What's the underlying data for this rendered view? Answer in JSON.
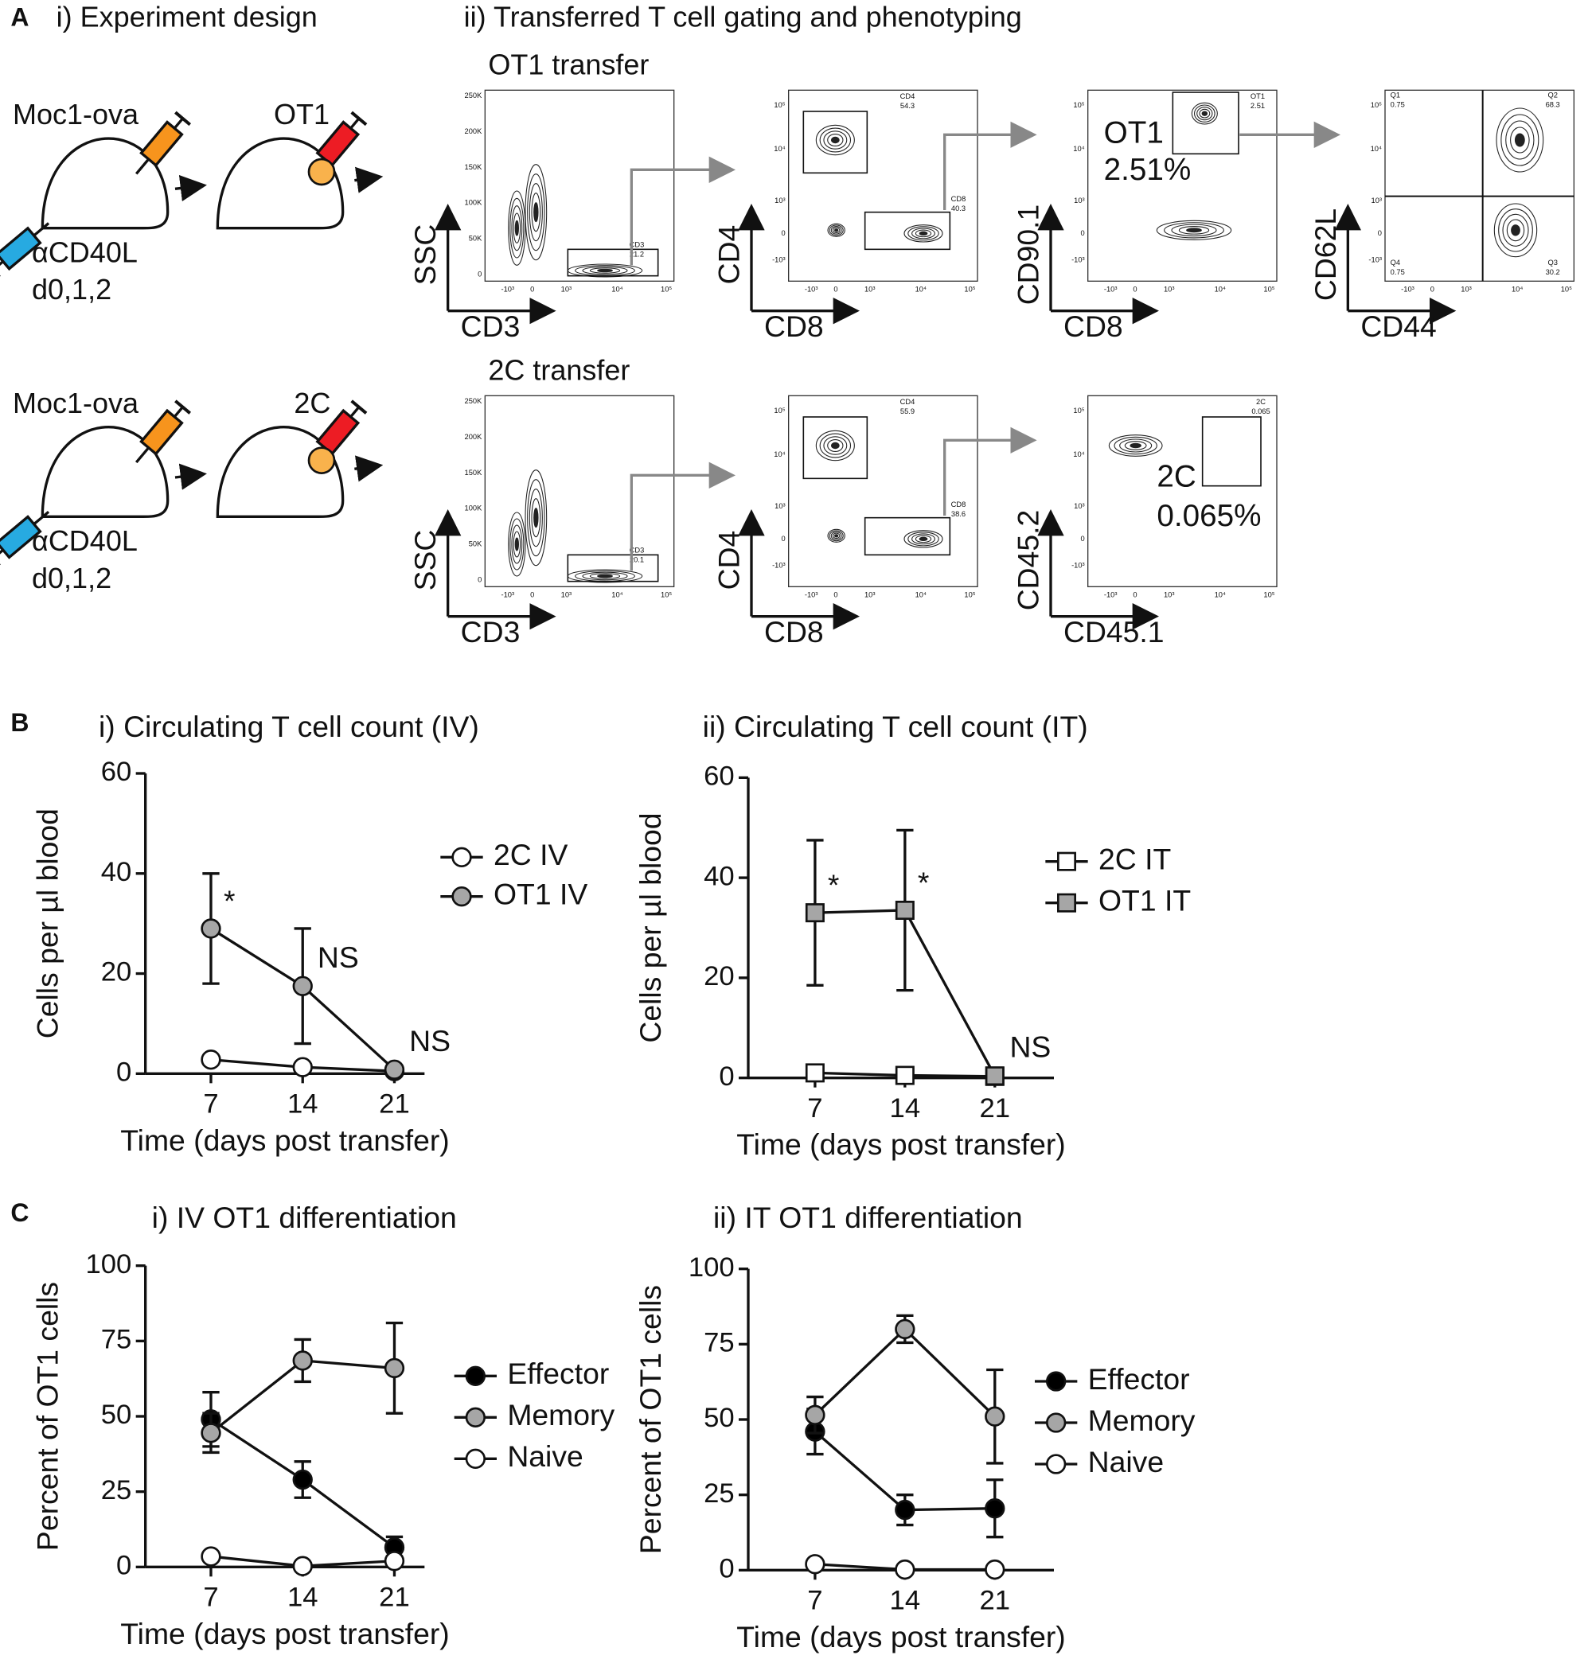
{
  "panel_labels": [
    "A",
    "B",
    "C"
  ],
  "panel_A": {
    "design_title": "i) Experiment design",
    "gating_title": "ii) Transferred T cell gating and phenotyping",
    "flow_ticks": {
      "linear": [
        "250K",
        "200K",
        "150K",
        "100K",
        "50K",
        "0"
      ],
      "log": [
        "10⁵",
        "10⁴",
        "10³",
        "0",
        "-10³"
      ],
      "x": [
        "-10³",
        "0",
        "10³",
        "10⁴",
        "10⁵"
      ]
    },
    "rows": [
      {
        "tumor": "Moc1-ova",
        "cells": "OT1",
        "treatment": "αCD40L",
        "days": "d0,1,2",
        "transfer_title": "OT1 transfer",
        "plots": [
          {
            "x_label": "CD3",
            "y_label": "SSC",
            "gates": [
              {
                "name": "CD3",
                "value": 21.2
              }
            ]
          },
          {
            "x_label": "CD8",
            "y_label": "CD4",
            "gates": [
              {
                "name": "CD4",
                "value": 54.3
              },
              {
                "name": "CD8",
                "value": 40.3
              }
            ]
          },
          {
            "x_label": "CD8",
            "y_label": "CD90.1",
            "gates": [
              {
                "name": "OT1",
                "value": 2.51
              }
            ],
            "callout": [
              "OT1",
              "2.51%"
            ]
          },
          {
            "x_label": "CD44",
            "y_label": "CD62L",
            "gates": [
              {
                "name": "Q1",
                "value": 0.75
              },
              {
                "name": "Q2",
                "value": 68.3
              },
              {
                "name": "Q3",
                "value": 30.2
              },
              {
                "name": "Q4",
                "value": 0.75
              }
            ]
          }
        ]
      },
      {
        "tumor": "Moc1-ova",
        "cells": "2C",
        "treatment": "αCD40L",
        "days": "d0,1,2",
        "transfer_title": "2C transfer",
        "plots": [
          {
            "x_label": "CD3",
            "y_label": "SSC",
            "gates": [
              {
                "name": "CD3",
                "value": 20.1
              }
            ]
          },
          {
            "x_label": "CD8",
            "y_label": "CD4",
            "gates": [
              {
                "name": "CD4",
                "value": 55.9
              },
              {
                "name": "CD8",
                "value": 38.6
              }
            ]
          },
          {
            "x_label": "CD45.1",
            "y_label": "CD45.2",
            "gates": [
              {
                "name": "2C",
                "value": 0.065
              }
            ],
            "callout": [
              "2C",
              "0.065%"
            ]
          }
        ]
      }
    ]
  },
  "chart_data": [
    {
      "type": "line",
      "title": "i) Circulating T cell count (IV)",
      "x_label": "Time (days post transfer)",
      "y_label": "Cells per µl blood",
      "x": [
        7,
        14,
        21
      ],
      "xlim": [
        2,
        23.3
      ],
      "xticks": [
        7,
        14,
        21
      ],
      "ylim": [
        0,
        60
      ],
      "yticks": [
        0,
        20,
        40,
        60
      ],
      "legend": "right",
      "series": [
        {
          "name": "2C IV",
          "color": "#ffffff",
          "marker": "circle",
          "values": [
            2.8,
            1.3,
            0.5
          ],
          "errors": [
            0.5,
            0.4,
            0.3
          ]
        },
        {
          "name": "OT1 IV",
          "color": "#a6a6a6",
          "marker": "circle",
          "values": [
            29,
            17.5,
            0.8
          ],
          "errors": [
            11,
            11.5,
            0.5
          ]
        }
      ],
      "annotations": [
        {
          "text": "*",
          "x": 7
        },
        {
          "text": "NS",
          "x": 14
        },
        {
          "text": "NS",
          "x": 21
        }
      ]
    },
    {
      "type": "line",
      "title": "ii) Circulating T cell count (IT)",
      "x_label": "Time (days post transfer)",
      "y_label": "Cells per µl blood",
      "x": [
        7,
        14,
        21
      ],
      "xlim": [
        1.8,
        25.6
      ],
      "xticks": [
        7,
        14,
        21
      ],
      "ylim": [
        0,
        60
      ],
      "yticks": [
        0,
        20,
        40,
        60
      ],
      "legend": "right",
      "series": [
        {
          "name": "2C IT",
          "color": "#ffffff",
          "marker": "square",
          "values": [
            1,
            0.5,
            0.3
          ],
          "errors": [
            0.4,
            0.3,
            0.2
          ]
        },
        {
          "name": "OT1 IT",
          "color": "#a6a6a6",
          "marker": "square",
          "values": [
            33,
            33.5,
            0.4
          ],
          "errors": [
            14.5,
            16,
            0.3
          ]
        }
      ],
      "annotations": [
        {
          "text": "*",
          "x": 7
        },
        {
          "text": "*",
          "x": 14
        },
        {
          "text": "NS",
          "x": 21
        }
      ]
    },
    {
      "type": "line",
      "title": "i) IV OT1 differentiation",
      "x_label": "Time (days post transfer)",
      "y_label": "Percent of OT1 cells",
      "x": [
        7,
        14,
        21
      ],
      "xlim": [
        2,
        23.3
      ],
      "xticks": [
        7,
        14,
        21
      ],
      "ylim": [
        0,
        100
      ],
      "yticks": [
        0,
        25,
        50,
        75,
        100
      ],
      "legend": "right",
      "series": [
        {
          "name": "Effector",
          "color": "#000000",
          "marker": "circle",
          "values": [
            49,
            29,
            6.5
          ],
          "errors": [
            9,
            6,
            3.5
          ]
        },
        {
          "name": "Memory",
          "color": "#a6a6a6",
          "marker": "circle",
          "values": [
            44.5,
            68.5,
            66
          ],
          "errors": [
            6.5,
            7,
            15
          ]
        },
        {
          "name": "Naive",
          "color": "#ffffff",
          "marker": "circle",
          "values": [
            3.5,
            0.3,
            2
          ],
          "errors": [
            1,
            0.5,
            1.5
          ]
        }
      ]
    },
    {
      "type": "line",
      "title": "ii) IT OT1 differentiation",
      "x_label": "Time (days post transfer)",
      "y_label": "Percent of OT1 cells",
      "x": [
        7,
        14,
        21
      ],
      "xlim": [
        1.8,
        25.6
      ],
      "xticks": [
        7,
        14,
        21
      ],
      "ylim": [
        0,
        100
      ],
      "yticks": [
        0,
        25,
        50,
        75,
        100
      ],
      "legend": "right",
      "series": [
        {
          "name": "Effector",
          "color": "#000000",
          "marker": "circle",
          "values": [
            46,
            20,
            20.5
          ],
          "errors": [
            7.5,
            5,
            9.5
          ]
        },
        {
          "name": "Memory",
          "color": "#a6a6a6",
          "marker": "circle",
          "values": [
            51.5,
            80,
            51
          ],
          "errors": [
            6,
            4.5,
            15.5
          ]
        },
        {
          "name": "Naive",
          "color": "#ffffff",
          "marker": "circle",
          "values": [
            2,
            0.2,
            0.2
          ],
          "errors": [
            0.8,
            0.3,
            0.3
          ]
        }
      ]
    }
  ]
}
